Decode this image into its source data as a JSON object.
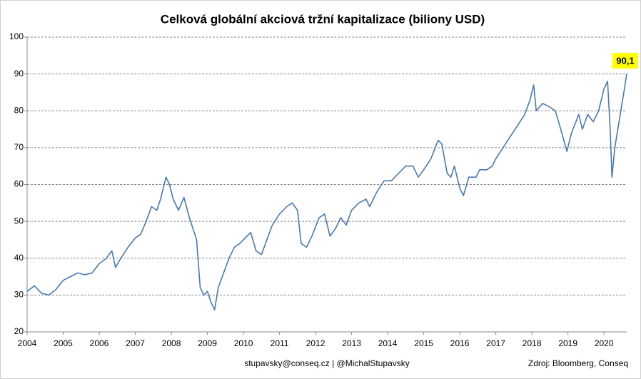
{
  "chart_data": {
    "type": "line",
    "title": "Celková globální akciová tržní kapitalizace (biliony USD)",
    "footer_left": "stupavsky@conseq.cz  |  @MichalStupavsky",
    "footer_right": "Zdroj: Bloomberg, Conseq",
    "annotations": [
      {
        "text": "90,1"
      }
    ],
    "xlim": [
      2004,
      2020.63
    ],
    "xticks": [
      2004,
      2005,
      2006,
      2007,
      2008,
      2009,
      2010,
      2011,
      2012,
      2013,
      2014,
      2015,
      2016,
      2017,
      2018,
      2019,
      2020
    ],
    "ylim": [
      20,
      100
    ],
    "yticks": [
      20,
      30,
      40,
      50,
      60,
      70,
      80,
      90,
      100
    ],
    "grid": true,
    "series": [
      {
        "color": "#4a78b0",
        "x": [
          2004.0,
          2004.2,
          2004.4,
          2004.6,
          2004.8,
          2005.0,
          2005.2,
          2005.4,
          2005.6,
          2005.8,
          2006.0,
          2006.2,
          2006.35,
          2006.45,
          2006.6,
          2006.8,
          2007.0,
          2007.15,
          2007.3,
          2007.45,
          2007.6,
          2007.7,
          2007.85,
          2007.95,
          2008.05,
          2008.2,
          2008.35,
          2008.5,
          2008.6,
          2008.7,
          2008.8,
          2008.9,
          2009.0,
          2009.1,
          2009.2,
          2009.3,
          2009.45,
          2009.6,
          2009.75,
          2009.9,
          2010.0,
          2010.2,
          2010.35,
          2010.5,
          2010.65,
          2010.8,
          2011.0,
          2011.2,
          2011.35,
          2011.5,
          2011.6,
          2011.75,
          2011.9,
          2012.1,
          2012.25,
          2012.4,
          2012.55,
          2012.7,
          2012.85,
          2013.0,
          2013.2,
          2013.4,
          2013.5,
          2013.7,
          2013.9,
          2014.1,
          2014.3,
          2014.5,
          2014.7,
          2014.85,
          2015.0,
          2015.2,
          2015.4,
          2015.5,
          2015.65,
          2015.75,
          2015.85,
          2016.0,
          2016.1,
          2016.25,
          2016.45,
          2016.55,
          2016.75,
          2016.9,
          2017.0,
          2017.2,
          2017.4,
          2017.6,
          2017.8,
          2017.95,
          2018.05,
          2018.12,
          2018.3,
          2018.5,
          2018.65,
          2018.8,
          2018.97,
          2019.1,
          2019.3,
          2019.4,
          2019.55,
          2019.7,
          2019.85,
          2020.0,
          2020.1,
          2020.17,
          2020.22,
          2020.3,
          2020.4,
          2020.5,
          2020.55,
          2020.63
        ],
        "values": [
          31,
          32.5,
          30.5,
          30,
          31.5,
          34,
          35,
          36,
          35.5,
          36,
          38.5,
          40,
          42,
          37.5,
          40,
          43,
          45.5,
          46.5,
          50,
          54,
          53,
          56,
          62,
          60,
          56,
          53,
          56.5,
          51,
          48,
          45,
          32,
          30,
          31,
          28,
          26,
          32,
          36,
          40,
          43,
          44,
          45,
          47,
          42,
          41,
          45,
          49,
          52,
          54,
          55,
          53,
          44,
          43,
          46,
          51,
          52,
          46,
          48,
          51,
          49,
          53,
          55,
          56,
          54,
          58,
          61,
          61,
          63,
          65,
          65,
          62,
          64,
          67,
          72,
          71,
          63,
          62,
          65,
          59,
          57,
          62,
          62,
          64,
          64,
          65,
          67,
          70,
          73,
          76,
          79,
          83,
          87,
          80,
          82,
          81,
          80,
          75,
          69,
          74,
          79,
          75,
          79,
          77,
          80,
          86,
          88,
          75,
          62,
          70,
          76,
          82,
          85,
          90.1
        ]
      }
    ]
  }
}
